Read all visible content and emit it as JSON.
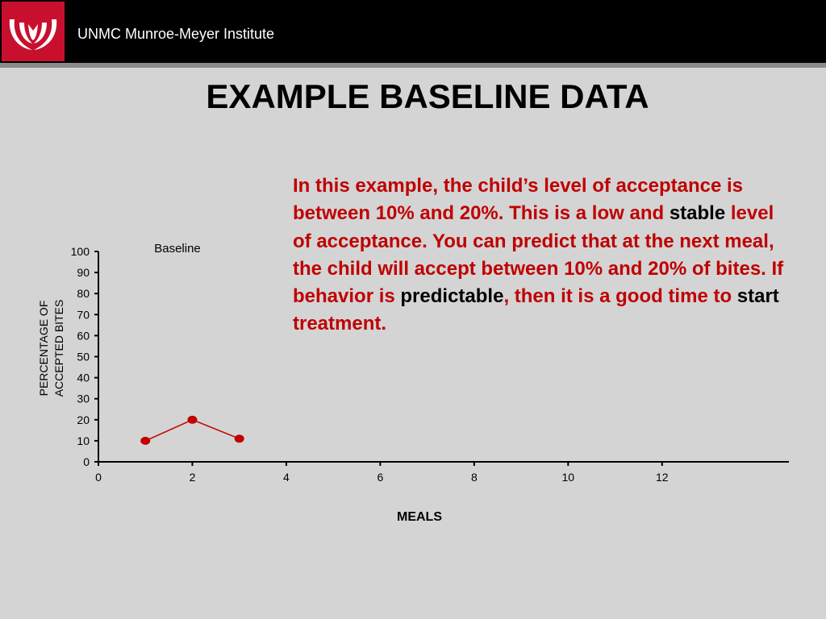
{
  "header": {
    "institution": "UNMC Munroe-Meyer Institute",
    "brand_color": "#c8102e",
    "logo_icon": "unmc-logo-icon"
  },
  "slide": {
    "title": "EXAMPLE BASELINE DATA",
    "paragraph": [
      {
        "text": "In this example, the child’s level of acceptance is between 10% and 20%. This is a low and ",
        "color": "red"
      },
      {
        "text": "stable",
        "color": "black"
      },
      {
        "text": " level of acceptance. You can predict that at the next meal, the child will accept between 10% and 20% of bites. If behavior is ",
        "color": "red"
      },
      {
        "text": "predictable",
        "color": "black"
      },
      {
        "text": ", then it is a good time to ",
        "color": "red"
      },
      {
        "text": "start",
        "color": "black"
      },
      {
        "text": " treatment.",
        "color": "red"
      }
    ],
    "text_colors": {
      "red": "#c00000",
      "black": "#000000"
    }
  },
  "chart_data": {
    "type": "line",
    "phase_label": "Baseline",
    "xlabel": "MEALS",
    "ylabel_lines": [
      "PERCENTAGE OF",
      "ACCEPTED BITES"
    ],
    "x_ticks": [
      0,
      2,
      4,
      6,
      8,
      10,
      12
    ],
    "y_ticks": [
      0,
      10,
      20,
      30,
      40,
      50,
      60,
      70,
      80,
      90,
      100
    ],
    "xlim": [
      0,
      14.7
    ],
    "ylim": [
      0,
      100
    ],
    "series": [
      {
        "x": [
          1,
          2,
          3
        ],
        "y": [
          10,
          20,
          11
        ],
        "color": "#c00000"
      }
    ],
    "grid": false
  }
}
